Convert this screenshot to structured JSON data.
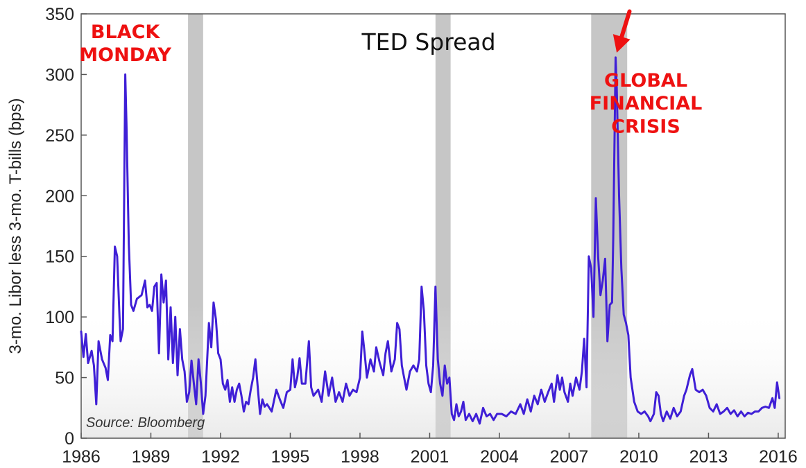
{
  "chart_data": {
    "type": "line",
    "title": "TED Spread",
    "ylabel": "3-mo. Libor less 3-mo. T-bills (bps)",
    "xlabel": "",
    "xlim": [
      1986,
      2016.3
    ],
    "ylim": [
      0,
      350
    ],
    "x_ticks": [
      "1986",
      "1989",
      "1992",
      "1995",
      "1998",
      "2001",
      "2004",
      "2007",
      "2010",
      "2013",
      "2016"
    ],
    "x_tick_values": [
      1986,
      1989,
      1992,
      1995,
      1998,
      2001,
      2004,
      2007,
      2010,
      2013,
      2016
    ],
    "y_ticks": [
      "0",
      "50",
      "100",
      "150",
      "200",
      "250",
      "300",
      "350"
    ],
    "y_tick_values": [
      0,
      50,
      100,
      150,
      200,
      250,
      300,
      350
    ],
    "grid": false,
    "line_color": "#3f1fd6",
    "recession_color": "#c6c6c6",
    "recessions": [
      [
        1990.6,
        1991.25
      ],
      [
        2001.25,
        2001.9
      ],
      [
        2007.95,
        2009.5
      ]
    ],
    "series": [
      {
        "points": [
          [
            1986.0,
            88
          ],
          [
            1986.1,
            67
          ],
          [
            1986.2,
            86
          ],
          [
            1986.3,
            62
          ],
          [
            1986.45,
            72
          ],
          [
            1986.55,
            60
          ],
          [
            1986.65,
            28
          ],
          [
            1986.75,
            80
          ],
          [
            1986.9,
            65
          ],
          [
            1987.05,
            58
          ],
          [
            1987.15,
            48
          ],
          [
            1987.25,
            85
          ],
          [
            1987.35,
            80
          ],
          [
            1987.45,
            158
          ],
          [
            1987.55,
            150
          ],
          [
            1987.65,
            100
          ],
          [
            1987.7,
            80
          ],
          [
            1987.8,
            90
          ],
          [
            1987.9,
            300
          ],
          [
            1987.95,
            260
          ],
          [
            1988.05,
            160
          ],
          [
            1988.15,
            110
          ],
          [
            1988.25,
            105
          ],
          [
            1988.4,
            115
          ],
          [
            1988.6,
            118
          ],
          [
            1988.75,
            130
          ],
          [
            1988.85,
            108
          ],
          [
            1988.95,
            110
          ],
          [
            1989.05,
            105
          ],
          [
            1989.15,
            125
          ],
          [
            1989.25,
            128
          ],
          [
            1989.35,
            70
          ],
          [
            1989.45,
            135
          ],
          [
            1989.55,
            112
          ],
          [
            1989.65,
            130
          ],
          [
            1989.75,
            65
          ],
          [
            1989.85,
            108
          ],
          [
            1989.95,
            62
          ],
          [
            1990.05,
            100
          ],
          [
            1990.15,
            52
          ],
          [
            1990.25,
            90
          ],
          [
            1990.35,
            65
          ],
          [
            1990.45,
            55
          ],
          [
            1990.55,
            30
          ],
          [
            1990.65,
            38
          ],
          [
            1990.75,
            64
          ],
          [
            1990.85,
            45
          ],
          [
            1990.95,
            28
          ],
          [
            1991.05,
            65
          ],
          [
            1991.15,
            46
          ],
          [
            1991.25,
            20
          ],
          [
            1991.35,
            35
          ],
          [
            1991.5,
            95
          ],
          [
            1991.6,
            75
          ],
          [
            1991.7,
            112
          ],
          [
            1991.8,
            98
          ],
          [
            1991.9,
            70
          ],
          [
            1992.0,
            65
          ],
          [
            1992.1,
            45
          ],
          [
            1992.2,
            40
          ],
          [
            1992.3,
            48
          ],
          [
            1992.4,
            30
          ],
          [
            1992.5,
            42
          ],
          [
            1992.6,
            30
          ],
          [
            1992.7,
            40
          ],
          [
            1992.8,
            45
          ],
          [
            1992.9,
            35
          ],
          [
            1993.0,
            22
          ],
          [
            1993.1,
            30
          ],
          [
            1993.2,
            28
          ],
          [
            1993.3,
            40
          ],
          [
            1993.4,
            50
          ],
          [
            1993.5,
            65
          ],
          [
            1993.6,
            42
          ],
          [
            1993.7,
            20
          ],
          [
            1993.8,
            32
          ],
          [
            1993.9,
            26
          ],
          [
            1994.0,
            28
          ],
          [
            1994.2,
            22
          ],
          [
            1994.4,
            40
          ],
          [
            1994.55,
            32
          ],
          [
            1994.7,
            25
          ],
          [
            1994.85,
            38
          ],
          [
            1995.0,
            40
          ],
          [
            1995.1,
            65
          ],
          [
            1995.2,
            42
          ],
          [
            1995.3,
            50
          ],
          [
            1995.4,
            66
          ],
          [
            1995.5,
            45
          ],
          [
            1995.65,
            45
          ],
          [
            1995.8,
            80
          ],
          [
            1995.9,
            42
          ],
          [
            1996.0,
            35
          ],
          [
            1996.2,
            40
          ],
          [
            1996.35,
            30
          ],
          [
            1996.5,
            55
          ],
          [
            1996.65,
            35
          ],
          [
            1996.8,
            50
          ],
          [
            1996.95,
            30
          ],
          [
            1997.1,
            38
          ],
          [
            1997.25,
            30
          ],
          [
            1997.4,
            45
          ],
          [
            1997.55,
            35
          ],
          [
            1997.7,
            40
          ],
          [
            1997.85,
            38
          ],
          [
            1998.0,
            50
          ],
          [
            1998.1,
            88
          ],
          [
            1998.2,
            70
          ],
          [
            1998.3,
            50
          ],
          [
            1998.45,
            65
          ],
          [
            1998.6,
            55
          ],
          [
            1998.7,
            75
          ],
          [
            1998.85,
            62
          ],
          [
            1999.0,
            52
          ],
          [
            1999.1,
            70
          ],
          [
            1999.2,
            80
          ],
          [
            1999.35,
            55
          ],
          [
            1999.5,
            65
          ],
          [
            1999.6,
            95
          ],
          [
            1999.7,
            90
          ],
          [
            1999.8,
            60
          ],
          [
            1999.9,
            50
          ],
          [
            2000.0,
            40
          ],
          [
            2000.15,
            55
          ],
          [
            2000.3,
            60
          ],
          [
            2000.45,
            55
          ],
          [
            2000.55,
            65
          ],
          [
            2000.65,
            125
          ],
          [
            2000.75,
            105
          ],
          [
            2000.85,
            60
          ],
          [
            2000.95,
            45
          ],
          [
            2001.05,
            38
          ],
          [
            2001.15,
            60
          ],
          [
            2001.25,
            125
          ],
          [
            2001.35,
            65
          ],
          [
            2001.45,
            45
          ],
          [
            2001.55,
            35
          ],
          [
            2001.65,
            60
          ],
          [
            2001.75,
            45
          ],
          [
            2001.85,
            50
          ],
          [
            2001.95,
            20
          ],
          [
            2002.05,
            15
          ],
          [
            2002.15,
            28
          ],
          [
            2002.25,
            18
          ],
          [
            2002.35,
            22
          ],
          [
            2002.45,
            30
          ],
          [
            2002.55,
            15
          ],
          [
            2002.7,
            20
          ],
          [
            2002.85,
            14
          ],
          [
            2003.0,
            20
          ],
          [
            2003.15,
            12
          ],
          [
            2003.3,
            25
          ],
          [
            2003.45,
            18
          ],
          [
            2003.6,
            20
          ],
          [
            2003.75,
            15
          ],
          [
            2003.9,
            20
          ],
          [
            2004.1,
            20
          ],
          [
            2004.3,
            18
          ],
          [
            2004.5,
            22
          ],
          [
            2004.7,
            20
          ],
          [
            2004.9,
            28
          ],
          [
            2005.05,
            20
          ],
          [
            2005.2,
            32
          ],
          [
            2005.35,
            22
          ],
          [
            2005.5,
            35
          ],
          [
            2005.65,
            28
          ],
          [
            2005.8,
            40
          ],
          [
            2005.95,
            30
          ],
          [
            2006.1,
            38
          ],
          [
            2006.25,
            45
          ],
          [
            2006.35,
            30
          ],
          [
            2006.5,
            52
          ],
          [
            2006.6,
            40
          ],
          [
            2006.7,
            50
          ],
          [
            2006.8,
            38
          ],
          [
            2006.95,
            30
          ],
          [
            2007.05,
            45
          ],
          [
            2007.15,
            35
          ],
          [
            2007.3,
            50
          ],
          [
            2007.45,
            40
          ],
          [
            2007.55,
            55
          ],
          [
            2007.65,
            82
          ],
          [
            2007.75,
            42
          ],
          [
            2007.85,
            150
          ],
          [
            2007.95,
            140
          ],
          [
            2008.05,
            100
          ],
          [
            2008.15,
            198
          ],
          [
            2008.25,
            150
          ],
          [
            2008.35,
            118
          ],
          [
            2008.45,
            130
          ],
          [
            2008.55,
            148
          ],
          [
            2008.65,
            80
          ],
          [
            2008.75,
            110
          ],
          [
            2008.85,
            112
          ],
          [
            2008.9,
            165
          ],
          [
            2009.0,
            314
          ],
          [
            2009.05,
            290
          ],
          [
            2009.15,
            200
          ],
          [
            2009.25,
            140
          ],
          [
            2009.35,
            102
          ],
          [
            2009.45,
            95
          ],
          [
            2009.55,
            85
          ],
          [
            2009.65,
            50
          ],
          [
            2009.8,
            30
          ],
          [
            2009.95,
            22
          ],
          [
            2010.1,
            20
          ],
          [
            2010.25,
            22
          ],
          [
            2010.4,
            18
          ],
          [
            2010.5,
            14
          ],
          [
            2010.65,
            20
          ],
          [
            2010.75,
            38
          ],
          [
            2010.85,
            35
          ],
          [
            2010.95,
            20
          ],
          [
            2011.05,
            14
          ],
          [
            2011.2,
            22
          ],
          [
            2011.35,
            16
          ],
          [
            2011.5,
            25
          ],
          [
            2011.65,
            18
          ],
          [
            2011.8,
            22
          ],
          [
            2011.95,
            35
          ],
          [
            2012.05,
            40
          ],
          [
            2012.2,
            52
          ],
          [
            2012.3,
            57
          ],
          [
            2012.45,
            40
          ],
          [
            2012.6,
            38
          ],
          [
            2012.75,
            40
          ],
          [
            2012.9,
            35
          ],
          [
            2013.05,
            25
          ],
          [
            2013.2,
            22
          ],
          [
            2013.35,
            28
          ],
          [
            2013.5,
            20
          ],
          [
            2013.65,
            22
          ],
          [
            2013.8,
            25
          ],
          [
            2013.95,
            20
          ],
          [
            2014.1,
            23
          ],
          [
            2014.25,
            18
          ],
          [
            2014.4,
            22
          ],
          [
            2014.55,
            18
          ],
          [
            2014.7,
            21
          ],
          [
            2014.85,
            20
          ],
          [
            2015.0,
            22
          ],
          [
            2015.15,
            22
          ],
          [
            2015.3,
            25
          ],
          [
            2015.45,
            26
          ],
          [
            2015.6,
            25
          ],
          [
            2015.75,
            33
          ],
          [
            2015.85,
            25
          ],
          [
            2015.95,
            46
          ],
          [
            2016.05,
            33
          ]
        ]
      }
    ],
    "annotations": [
      {
        "text": "BLACK",
        "x": 1987.9,
        "y": 330,
        "color": "#ee1111"
      },
      {
        "text": "MONDAY",
        "x": 1987.9,
        "y": 311,
        "color": "#ee1111"
      },
      {
        "text": "GLOBAL",
        "x": 2010.3,
        "y": 290,
        "color": "#ee1111"
      },
      {
        "text": "FINANCIAL",
        "x": 2010.3,
        "y": 271,
        "color": "#ee1111"
      },
      {
        "text": "CRISIS",
        "x": 2010.3,
        "y": 252,
        "color": "#ee1111"
      }
    ],
    "arrow": {
      "color": "#ee1111",
      "from": [
        2009.6,
        352
      ],
      "to": [
        2009.05,
        318
      ]
    },
    "source": "Source: Bloomberg"
  }
}
